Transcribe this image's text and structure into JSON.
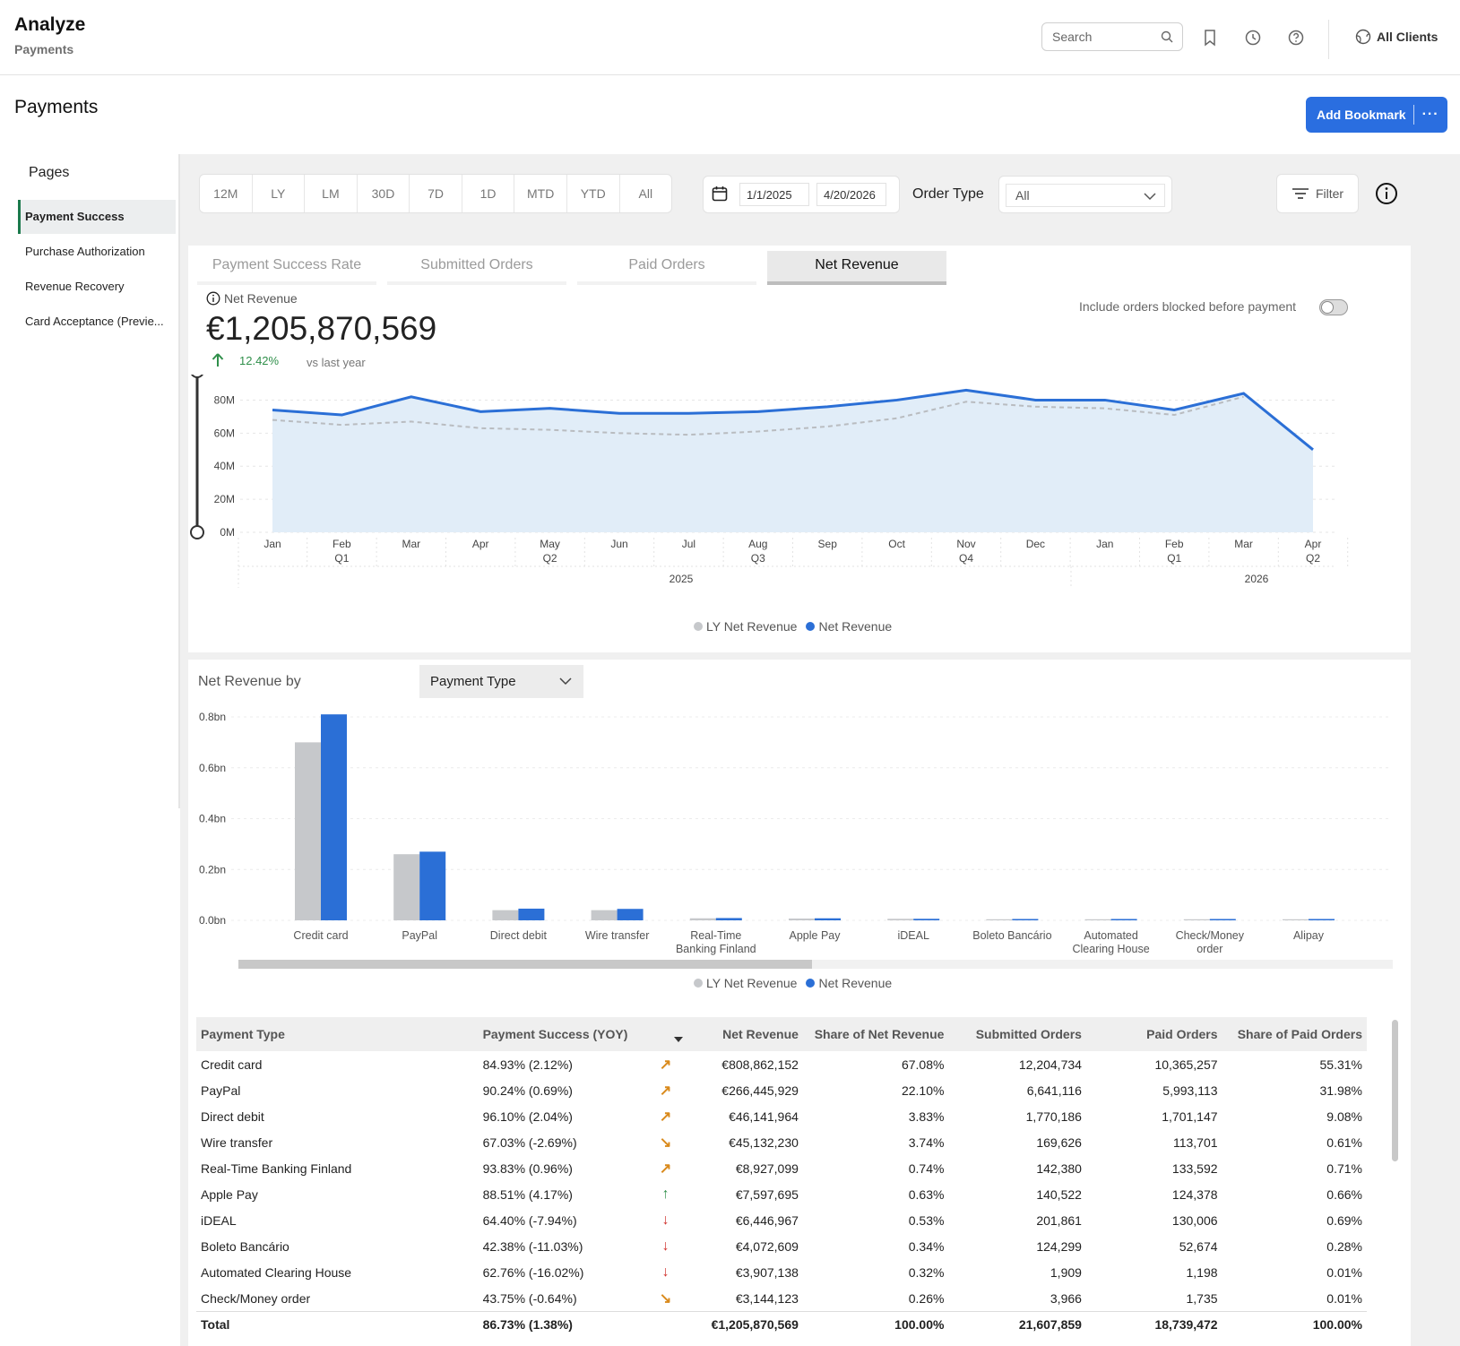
{
  "topbar": {
    "title": "Analyze",
    "subtitle": "Payments",
    "search_placeholder": "Search",
    "icons": [
      "search-icon",
      "bookmark-icon",
      "history-icon",
      "help-icon",
      "client-icon"
    ],
    "clients_label": "All Clients"
  },
  "page": {
    "title": "Payments",
    "add_bookmark": "Add Bookmark",
    "more": "···"
  },
  "sidebar": {
    "title": "Pages",
    "items": [
      {
        "label": "Payment Success",
        "active": true
      },
      {
        "label": "Purchase Authorization",
        "active": false
      },
      {
        "label": "Revenue Recovery",
        "active": false
      },
      {
        "label": "Card Acceptance (Previe...",
        "active": false
      }
    ]
  },
  "filters": {
    "periods": [
      "12M",
      "LY",
      "LM",
      "30D",
      "7D",
      "1D",
      "MTD",
      "YTD",
      "All"
    ],
    "date_from": "1/1/2025",
    "date_to": "4/20/2026",
    "order_type_label": "Order Type",
    "order_type_value": "All",
    "filter_label": "Filter"
  },
  "metric_tabs": [
    "Payment Success Rate",
    "Submitted Orders",
    "Paid Orders",
    "Net Revenue"
  ],
  "active_tab": 3,
  "kpi": {
    "label": "Net Revenue",
    "value": "€1,205,870,569",
    "change": "12.42%",
    "vs": "vs last year",
    "toggle_label": "Include orders blocked before payment",
    "toggle_on": false
  },
  "colors": {
    "accent": "#2a6ee0",
    "series_current": "#2b6fd6",
    "series_ly": "#c6c8cb",
    "area_fill": "#e1edf8",
    "positive": "#2f8f4a",
    "arrow_up_orange": "#d98a1c",
    "arrow_down_red": "#d0302b"
  },
  "chart_data": [
    {
      "type": "area",
      "title": "Net Revenue",
      "x": [
        "Jan",
        "Feb",
        "Mar",
        "Apr",
        "May",
        "Jun",
        "Jul",
        "Aug",
        "Sep",
        "Oct",
        "Nov",
        "Dec",
        "Jan",
        "Feb",
        "Mar",
        "Apr"
      ],
      "x_sublabels": [
        "",
        "Q1",
        "",
        "",
        "Q2",
        "",
        "",
        "Q3",
        "",
        "",
        "Q4",
        "",
        "",
        "Q1",
        "",
        "Q2"
      ],
      "years": [
        "2025",
        "2026"
      ],
      "yticks": [
        "80M",
        "60M",
        "40M",
        "20M",
        "0M"
      ],
      "ylim": [
        0,
        90
      ],
      "yunit": "M",
      "series": [
        {
          "name": "Net Revenue",
          "values": [
            74,
            71,
            82,
            73,
            75,
            72,
            72,
            73,
            76,
            80,
            86,
            80,
            80,
            74,
            84,
            50
          ]
        },
        {
          "name": "LY Net Revenue",
          "values": [
            68,
            65,
            67,
            63,
            62,
            60,
            59,
            61,
            64,
            69,
            79,
            76,
            75,
            71,
            82,
            null
          ]
        }
      ],
      "legend": [
        "LY Net Revenue",
        "Net Revenue"
      ],
      "legend_placement": "bottom",
      "grid": true
    },
    {
      "type": "bar",
      "title": "Net Revenue by",
      "dimension": "Payment Type",
      "categories": [
        "Credit card",
        "PayPal",
        "Direct debit",
        "Wire transfer",
        "Real-Time Banking Finland",
        "Apple Pay",
        "iDEAL",
        "Boleto Bancário",
        "Automated Clearing House",
        "Check/Money order",
        "Alipay"
      ],
      "category_lines": [
        [
          "Credit card"
        ],
        [
          "PayPal"
        ],
        [
          "Direct debit"
        ],
        [
          "Wire transfer"
        ],
        [
          "Real-Time",
          "Banking Finland"
        ],
        [
          "Apple Pay"
        ],
        [
          "iDEAL"
        ],
        [
          "Boleto Bancário"
        ],
        [
          "Automated",
          "Clearing House"
        ],
        [
          "Check/Money",
          "order"
        ],
        [
          "Alipay"
        ]
      ],
      "yticks": [
        "0.8bn",
        "0.6bn",
        "0.4bn",
        "0.2bn",
        "0.0bn"
      ],
      "ylim": [
        0,
        0.8
      ],
      "series": [
        {
          "name": "LY Net Revenue",
          "values": [
            0.7,
            0.26,
            0.04,
            0.04,
            0.008,
            0.007,
            0.006,
            0.004,
            0.004,
            0.003,
            0.002
          ]
        },
        {
          "name": "Net Revenue",
          "values": [
            0.81,
            0.27,
            0.046,
            0.045,
            0.009,
            0.008,
            0.006,
            0.004,
            0.004,
            0.003,
            0.002
          ]
        }
      ],
      "legend": [
        "LY Net Revenue",
        "Net Revenue"
      ],
      "legend_placement": "bottom",
      "grid": true
    }
  ],
  "table": {
    "columns": [
      "Payment Type",
      "Payment Success (YOY)",
      "",
      "Net Revenue",
      "Share of Net Revenue",
      "Submitted Orders",
      "Paid Orders",
      "Share of Paid Orders"
    ],
    "rows": [
      {
        "type": "Credit card",
        "success": "84.93% (2.12%)",
        "trend": "up-right",
        "revenue": "€808,862,152",
        "share_rev": "67.08%",
        "submitted": "12,204,734",
        "paid": "10,365,257",
        "share_paid": "55.31%"
      },
      {
        "type": "PayPal",
        "success": "90.24% (0.69%)",
        "trend": "up-right",
        "revenue": "€266,445,929",
        "share_rev": "22.10%",
        "submitted": "6,641,116",
        "paid": "5,993,113",
        "share_paid": "31.98%"
      },
      {
        "type": "Direct debit",
        "success": "96.10% (2.04%)",
        "trend": "up-right",
        "revenue": "€46,141,964",
        "share_rev": "3.83%",
        "submitted": "1,770,186",
        "paid": "1,701,147",
        "share_paid": "9.08%"
      },
      {
        "type": "Wire transfer",
        "success": "67.03% (-2.69%)",
        "trend": "down-right",
        "revenue": "€45,132,230",
        "share_rev": "3.74%",
        "submitted": "169,626",
        "paid": "113,701",
        "share_paid": "0.61%"
      },
      {
        "type": "Real-Time Banking Finland",
        "success": "93.83% (0.96%)",
        "trend": "up-right",
        "revenue": "€8,927,099",
        "share_rev": "0.74%",
        "submitted": "142,380",
        "paid": "133,592",
        "share_paid": "0.71%"
      },
      {
        "type": "Apple Pay",
        "success": "88.51% (4.17%)",
        "trend": "up",
        "revenue": "€7,597,695",
        "share_rev": "0.63%",
        "submitted": "140,522",
        "paid": "124,378",
        "share_paid": "0.66%"
      },
      {
        "type": "iDEAL",
        "success": "64.40% (-7.94%)",
        "trend": "down",
        "revenue": "€6,446,967",
        "share_rev": "0.53%",
        "submitted": "201,861",
        "paid": "130,006",
        "share_paid": "0.69%"
      },
      {
        "type": "Boleto Bancário",
        "success": "42.38% (-11.03%)",
        "trend": "down",
        "revenue": "€4,072,609",
        "share_rev": "0.34%",
        "submitted": "124,299",
        "paid": "52,674",
        "share_paid": "0.28%"
      },
      {
        "type": "Automated Clearing House",
        "success": "62.76% (-16.02%)",
        "trend": "down",
        "revenue": "€3,907,138",
        "share_rev": "0.32%",
        "submitted": "1,909",
        "paid": "1,198",
        "share_paid": "0.01%"
      },
      {
        "type": "Check/Money order",
        "success": "43.75% (-0.64%)",
        "trend": "down-right",
        "revenue": "€3,144,123",
        "share_rev": "0.26%",
        "submitted": "3,966",
        "paid": "1,735",
        "share_paid": "0.01%"
      }
    ],
    "total": {
      "type": "Total",
      "success": "86.73% (1.38%)",
      "revenue": "€1,205,870,569",
      "share_rev": "100.00%",
      "submitted": "21,607,859",
      "paid": "18,739,472",
      "share_paid": "100.00%"
    }
  }
}
